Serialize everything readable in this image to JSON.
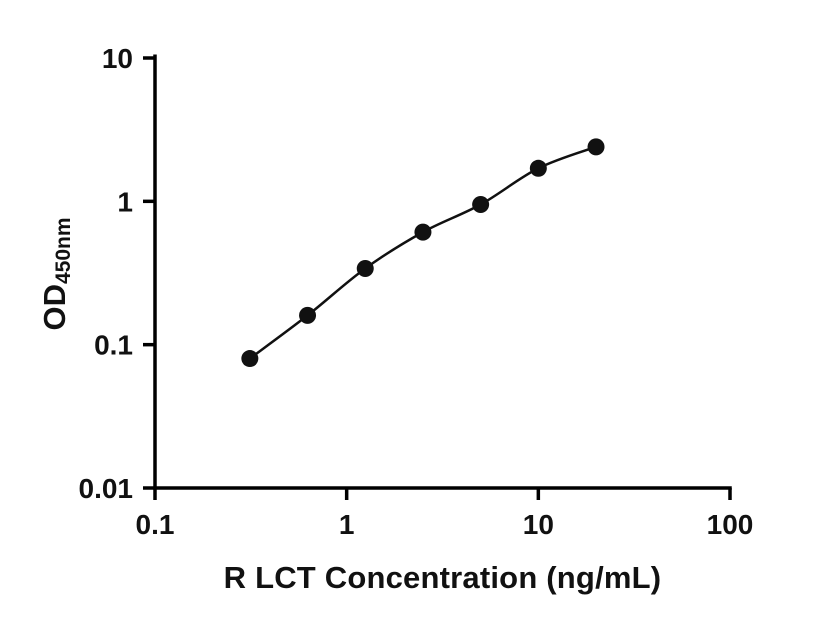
{
  "chart_data": {
    "type": "line-scatter",
    "x": [
      0.3125,
      0.625,
      1.25,
      2.5,
      5,
      10,
      20
    ],
    "y": [
      0.08,
      0.16,
      0.34,
      0.61,
      0.95,
      1.7,
      2.4
    ],
    "title": "",
    "xlabel": "R LCT Concentration (ng/mL)",
    "ylabel": "OD450nm",
    "ylabel_main": "OD",
    "ylabel_sub": "450nm",
    "xscale": "log",
    "yscale": "log",
    "xlim": [
      0.1,
      100
    ],
    "ylim": [
      0.01,
      10
    ],
    "x_tick_values": [
      0.1,
      1,
      10,
      100
    ],
    "x_tick_labels": [
      "0.1",
      "1",
      "10",
      "100"
    ],
    "y_tick_values": [
      0.01,
      0.1,
      1,
      10
    ],
    "y_tick_labels": [
      "0.01",
      "0.1",
      "1",
      "10"
    ],
    "grid": false,
    "legend": false,
    "marker": "filled-circle",
    "marker_radius_px": 8.5,
    "colors": {
      "marker": "#111111",
      "line": "#111111",
      "axis": "#000000",
      "tick_text": "#111111",
      "background": "#ffffff"
    }
  }
}
